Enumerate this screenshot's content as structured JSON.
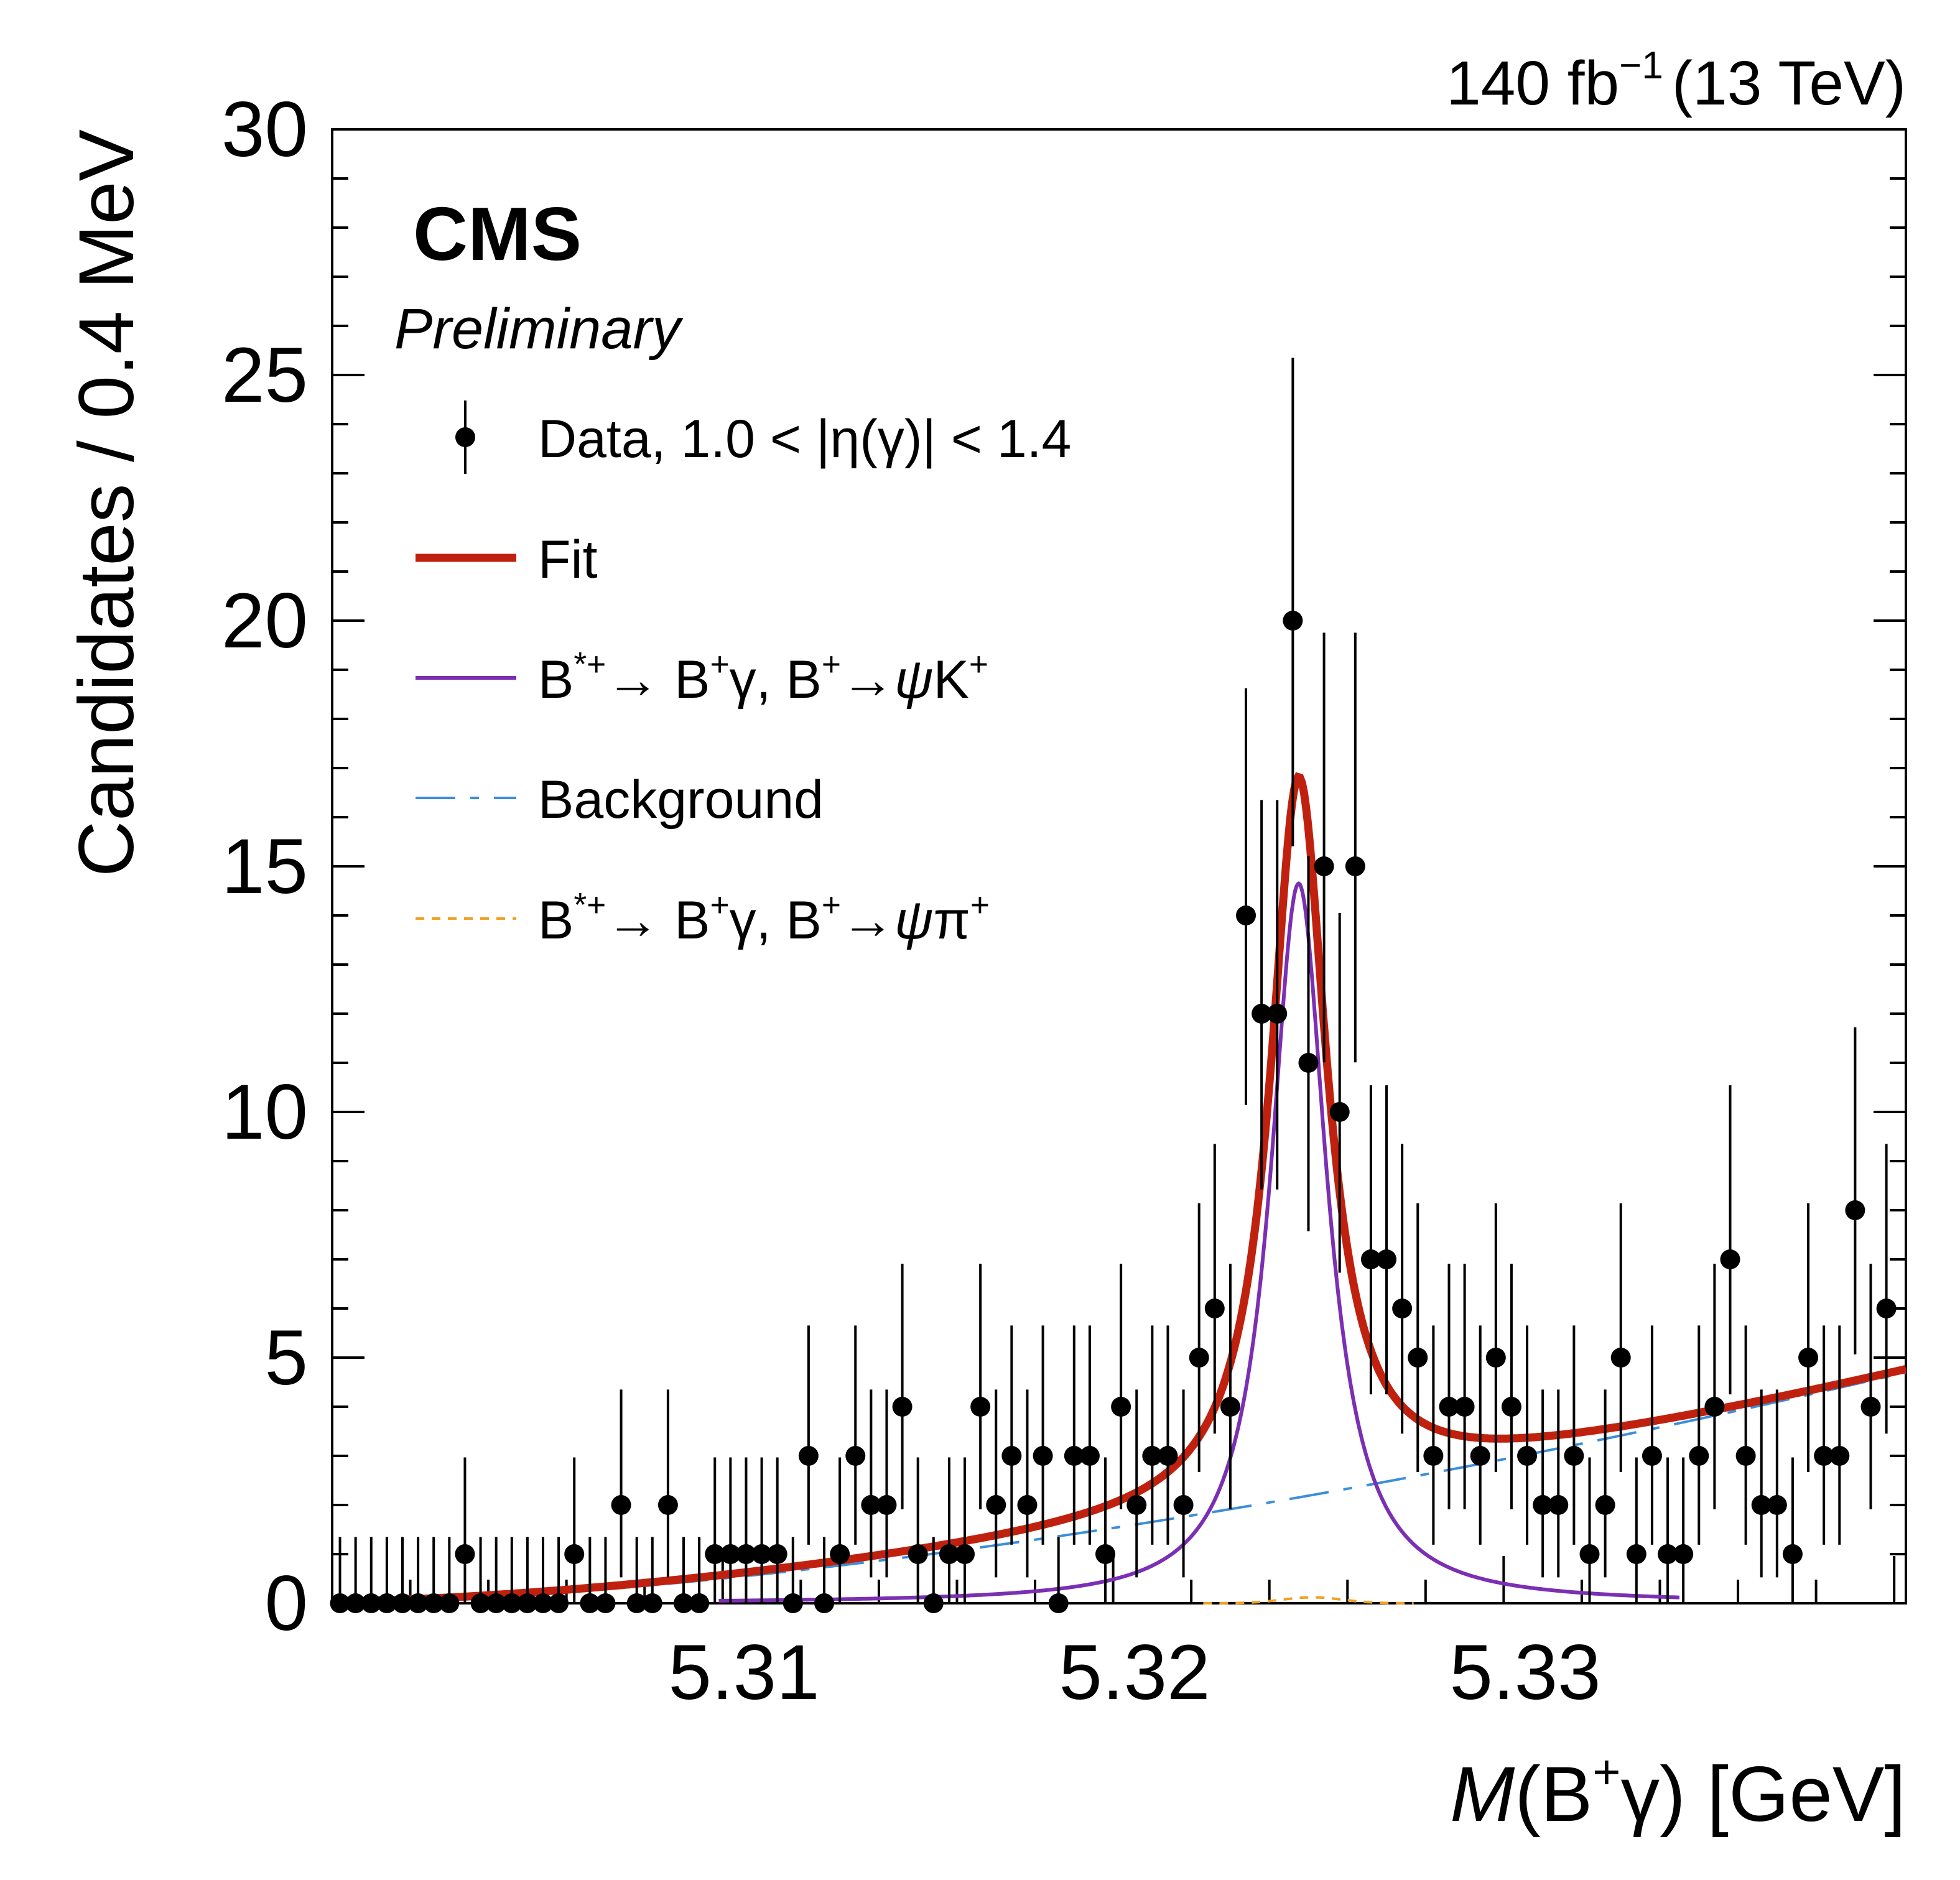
{
  "header": {
    "lumi": "140 fb",
    "lumi_exp": "−1",
    "energy": "(13 TeV)",
    "experiment": "CMS",
    "status": "Preliminary"
  },
  "axes": {
    "ylabel": "Candidates / 0.4 MeV",
    "xlabel": {
      "symbol": "M",
      "open": "(B",
      "sup": "+",
      "gamma": "γ",
      "close": ") [GeV]"
    }
  },
  "legend": {
    "data": {
      "a": "Data, 1.0 < |",
      "eta": "η",
      "b": "(",
      "gamma": "γ",
      "c": ")| < 1.4"
    },
    "fit": "Fit",
    "signal_k": {
      "b": "B",
      "sup1": "*+",
      "arrow1": "→ B",
      "sup2": "+",
      "mid": "γ, B",
      "sup3": "+",
      "arrow2": "→",
      "psi": "ψ",
      "tail": "K",
      "sup4": "+"
    },
    "background": "Background",
    "signal_pi": {
      "b": "B",
      "sup1": "*+",
      "arrow1": "→ B",
      "sup2": "+",
      "mid": "γ, B",
      "sup3": "+",
      "arrow2": "→",
      "psi": "ψ",
      "tail": "π",
      "sup4": "+"
    }
  },
  "chart_data": {
    "type": "scatter",
    "xlim": [
      5.3,
      5.3403
    ],
    "ylim": [
      0,
      30
    ],
    "x_ticks": [
      "5.31",
      "5.32",
      "5.33"
    ],
    "y_ticks": [
      "0",
      "5",
      "10",
      "15",
      "20",
      "25",
      "30"
    ],
    "colors": {
      "data": "#000000",
      "fit": "#c0210f",
      "signal": "#7b2fb3",
      "background": "#3a8fd9",
      "pi_component": "#f0a020"
    },
    "series": [
      {
        "name": "Data, 1.0 < |η(γ)| < 1.4",
        "kind": "points_with_errors",
        "x": [
          5.3002,
          5.3006,
          5.301,
          5.3014,
          5.3018,
          5.3022,
          5.3026,
          5.303,
          5.3034,
          5.3038,
          5.3042,
          5.3046,
          5.305,
          5.3054,
          5.3058,
          5.3062,
          5.3066,
          5.307,
          5.3074,
          5.3078,
          5.3082,
          5.3086,
          5.309,
          5.3094,
          5.3098,
          5.3102,
          5.3106,
          5.311,
          5.3114,
          5.3118,
          5.3122,
          5.3126,
          5.313,
          5.3134,
          5.3138,
          5.3142,
          5.3146,
          5.315,
          5.3154,
          5.3158,
          5.3162,
          5.3166,
          5.317,
          5.3174,
          5.3178,
          5.3182,
          5.3186,
          5.319,
          5.3194,
          5.3198,
          5.3202,
          5.3206,
          5.321,
          5.3214,
          5.3218,
          5.3222,
          5.3226,
          5.323,
          5.3234,
          5.3238,
          5.3242,
          5.3246,
          5.325,
          5.3254,
          5.3258,
          5.3262,
          5.3266,
          5.327,
          5.3274,
          5.3278,
          5.3282,
          5.3286,
          5.329,
          5.3294,
          5.3298,
          5.3302,
          5.3306,
          5.331,
          5.3314,
          5.3318,
          5.3322,
          5.3326,
          5.333,
          5.3334,
          5.3338,
          5.3342,
          5.3346,
          5.335,
          5.3354,
          5.3358,
          5.3362,
          5.3366,
          5.337,
          5.3374,
          5.3378,
          5.3382,
          5.3386,
          5.339,
          5.3394,
          5.3398
        ],
        "y": [
          0,
          0,
          0,
          0,
          0,
          0,
          0,
          0,
          1,
          0,
          0,
          0,
          0,
          0,
          0,
          1,
          0,
          0,
          2,
          0,
          0,
          2,
          0,
          0,
          1,
          1,
          1,
          1,
          1,
          0,
          3,
          0,
          1,
          3,
          2,
          2,
          4,
          1,
          0,
          1,
          1,
          4,
          2,
          3,
          2,
          3,
          0,
          3,
          3,
          1,
          4,
          2,
          3,
          3,
          2,
          5,
          6,
          4,
          14,
          12,
          12,
          20,
          11,
          15,
          10,
          15,
          7,
          7,
          6,
          5,
          3,
          4,
          4,
          3,
          5,
          4,
          3,
          2,
          2,
          3,
          1,
          2,
          5,
          1,
          3,
          1,
          1,
          3,
          4,
          7,
          3,
          2,
          2,
          1,
          5,
          3,
          3,
          8,
          4,
          6
        ]
      },
      {
        "name": "Fit",
        "kind": "curve"
      },
      {
        "name": "B*+→ B+γ, B+→ψK+",
        "kind": "curve"
      },
      {
        "name": "Background",
        "kind": "curve"
      },
      {
        "name": "B*+→ B+γ, B+→ψπ+",
        "kind": "curve"
      }
    ]
  }
}
